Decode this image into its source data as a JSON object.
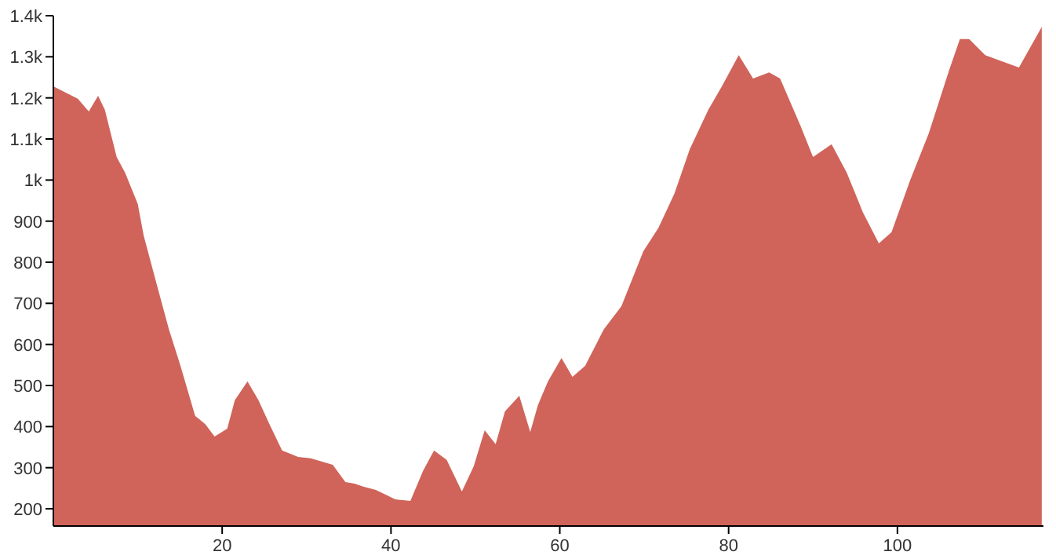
{
  "chart_data": {
    "type": "area",
    "color": "#d0645a",
    "xlim": [
      0,
      117.3
    ],
    "ylim": [
      158,
      1400
    ],
    "xticks": [
      20,
      40,
      60,
      80,
      100
    ],
    "yticks": [
      200,
      300,
      400,
      500,
      600,
      700,
      800,
      900,
      {
        "value": 1000,
        "label": "1k"
      },
      {
        "value": 1100,
        "label": "1.1k"
      },
      {
        "value": 1200,
        "label": "1.2k"
      },
      {
        "value": 1300,
        "label": "1.3k"
      },
      {
        "value": 1400,
        "label": "1.4k"
      }
    ],
    "grid": false,
    "x": [
      0,
      2.9,
      4.2,
      5.3,
      6.1,
      7.5,
      8.5,
      10.0,
      10.7,
      12.2,
      13.7,
      15.0,
      16.8,
      18.0,
      19.1,
      20.6,
      21.5,
      23.0,
      24.3,
      25.6,
      27.1,
      29.0,
      30.5,
      33.1,
      34.6,
      35.7,
      36.7,
      38.2,
      39.7,
      40.5,
      42.3,
      43.8,
      45.1,
      46.6,
      48.4,
      49.8,
      51.1,
      52.4,
      53.5,
      55.2,
      56.5,
      57.4,
      58.6,
      60.2,
      61.5,
      63.0,
      65.2,
      67.3,
      69.9,
      71.7,
      73.6,
      75.4,
      77.6,
      79.2,
      81.2,
      82.9,
      84.8,
      86.1,
      88.5,
      90.0,
      92.2,
      94.0,
      95.9,
      97.8,
      99.3,
      101.5,
      103.7,
      106.1,
      107.4,
      108.5,
      110.4,
      114.4,
      117.1
    ],
    "values": [
      1228,
      1198,
      1167,
      1205,
      1171,
      1056,
      1018,
      942,
      865,
      750,
      636,
      552,
      426,
      406,
      376,
      395,
      464,
      510,
      464,
      406,
      342,
      326,
      323,
      307,
      265,
      261,
      254,
      246,
      231,
      223,
      219,
      292,
      342,
      319,
      242,
      303,
      391,
      357,
      437,
      475,
      387,
      452,
      510,
      567,
      521,
      548,
      636,
      693,
      827,
      884,
      968,
      1075,
      1171,
      1228,
      1304,
      1247,
      1262,
      1247,
      1133,
      1056,
      1087,
      1018,
      922,
      846,
      873,
      999,
      1113,
      1266,
      1343,
      1343,
      1304,
      1274,
      1373
    ]
  }
}
